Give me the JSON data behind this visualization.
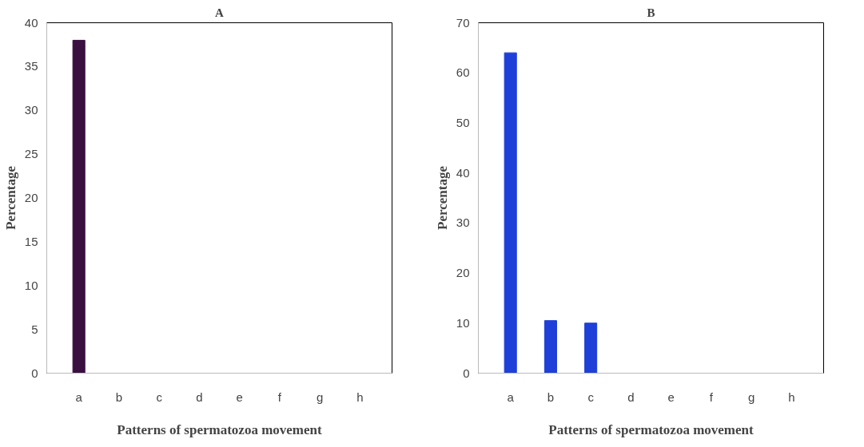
{
  "chart_data": [
    {
      "type": "bar",
      "title": "A",
      "xlabel": "Patterns of spermatozoa movement",
      "ylabel": "Percentage",
      "categories": [
        "a",
        "b",
        "c",
        "d",
        "e",
        "f",
        "g",
        "h"
      ],
      "values": [
        38,
        0,
        0,
        0,
        0,
        0,
        0,
        0
      ],
      "color": "#3a1040",
      "ylim": [
        0,
        40
      ],
      "yticks": [
        0,
        5,
        10,
        15,
        20,
        25,
        30,
        35,
        40
      ],
      "grid": false
    },
    {
      "type": "bar",
      "title": "B",
      "xlabel": "Patterns of spermatozoa movement",
      "ylabel": "Percentage",
      "categories": [
        "a",
        "b",
        "c",
        "d",
        "e",
        "f",
        "g",
        "h"
      ],
      "values": [
        64,
        10.5,
        10,
        0,
        0,
        0,
        0,
        0
      ],
      "color": "#1e3fd8",
      "ylim": [
        0,
        70
      ],
      "yticks": [
        0,
        10,
        20,
        30,
        40,
        50,
        60,
        70
      ],
      "grid": false
    }
  ]
}
